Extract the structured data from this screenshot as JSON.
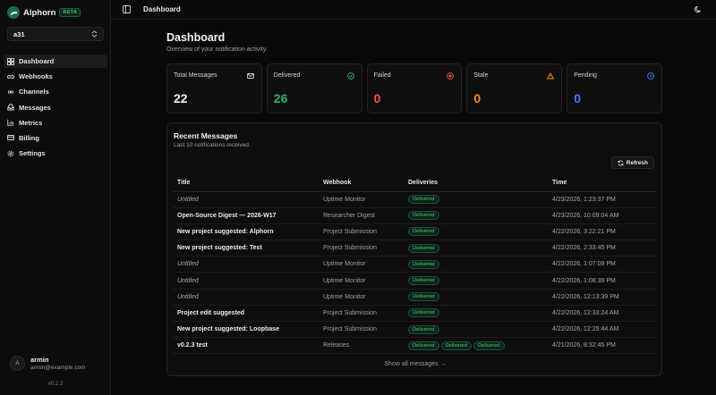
{
  "app": {
    "name": "Alphorn",
    "badge": "BETA",
    "version": "v0.2.3"
  },
  "workspace": {
    "selected": "a31"
  },
  "nav": [
    {
      "label": "Dashboard",
      "icon": "dashboard-icon",
      "active": true
    },
    {
      "label": "Webhooks",
      "icon": "link-icon",
      "active": false
    },
    {
      "label": "Channels",
      "icon": "radio-icon",
      "active": false
    },
    {
      "label": "Messages",
      "icon": "inbox-icon",
      "active": false
    },
    {
      "label": "Metrics",
      "icon": "bar-chart-icon",
      "active": false
    },
    {
      "label": "Billing",
      "icon": "credit-card-icon",
      "active": false
    },
    {
      "label": "Settings",
      "icon": "gear-icon",
      "active": false
    }
  ],
  "user": {
    "initial": "A",
    "name": "armin",
    "email": "armin@example.com"
  },
  "header": {
    "breadcrumb": "Dashboard"
  },
  "page": {
    "title": "Dashboard",
    "subtitle": "Overview of your notification activity."
  },
  "stats": [
    {
      "label": "Total Messages",
      "value": "22",
      "icon": "mail-icon",
      "color": "#f2f2f2"
    },
    {
      "label": "Delivered",
      "value": "26",
      "icon": "check-circle-icon",
      "color": "#2fb36a"
    },
    {
      "label": "Failed",
      "value": "0",
      "icon": "x-circle-icon",
      "color": "#ef5350"
    },
    {
      "label": "Stale",
      "value": "0",
      "icon": "warning-icon",
      "color": "#f08a24"
    },
    {
      "label": "Pending",
      "value": "0",
      "icon": "clock-icon",
      "color": "#3b82f6"
    }
  ],
  "recent": {
    "title": "Recent Messages",
    "subtitle": "Last 10 notifications received.",
    "refresh_label": "Refresh",
    "columns": [
      "Title",
      "Webhook",
      "Deliveries",
      "Time"
    ],
    "rows": [
      {
        "title": "Untitled",
        "untitled": true,
        "webhook": "Uptime Monitor",
        "deliveries": [
          "Delivered"
        ],
        "time": "4/23/2026, 1:23:37 PM"
      },
      {
        "title": "Open-Source Digest — 2026-W17",
        "untitled": false,
        "webhook": "Researcher Digest",
        "deliveries": [
          "Delivered"
        ],
        "time": "4/23/2026, 10:09:04 AM"
      },
      {
        "title": "New project suggested: Alphorn",
        "untitled": false,
        "webhook": "Project Submission",
        "deliveries": [
          "Delivered"
        ],
        "time": "4/22/2026, 3:22:21 PM"
      },
      {
        "title": "New project suggested: Test",
        "untitled": false,
        "webhook": "Project Submission",
        "deliveries": [
          "Delivered"
        ],
        "time": "4/22/2026, 2:33:45 PM"
      },
      {
        "title": "Untitled",
        "untitled": true,
        "webhook": "Uptime Monitor",
        "deliveries": [
          "Delivered"
        ],
        "time": "4/22/2026, 1:07:09 PM"
      },
      {
        "title": "Untitled",
        "untitled": true,
        "webhook": "Uptime Monitor",
        "deliveries": [
          "Delivered"
        ],
        "time": "4/22/2026, 1:06:39 PM"
      },
      {
        "title": "Untitled",
        "untitled": true,
        "webhook": "Uptime Monitor",
        "deliveries": [
          "Delivered"
        ],
        "time": "4/22/2026, 12:13:39 PM"
      },
      {
        "title": "Project edit suggested",
        "untitled": false,
        "webhook": "Project Submission",
        "deliveries": [
          "Delivered"
        ],
        "time": "4/22/2026, 12:33:24 AM"
      },
      {
        "title": "New project suggested: Loopbase",
        "untitled": false,
        "webhook": "Project Submission",
        "deliveries": [
          "Delivered"
        ],
        "time": "4/22/2026, 12:25:44 AM"
      },
      {
        "title": "v0.2.3 test",
        "untitled": false,
        "webhook": "Releases",
        "deliveries": [
          "Delivered",
          "Delivered",
          "Delivered"
        ],
        "time": "4/21/2026, 8:32:45 PM"
      }
    ],
    "show_all_label": "Show all messages →"
  }
}
